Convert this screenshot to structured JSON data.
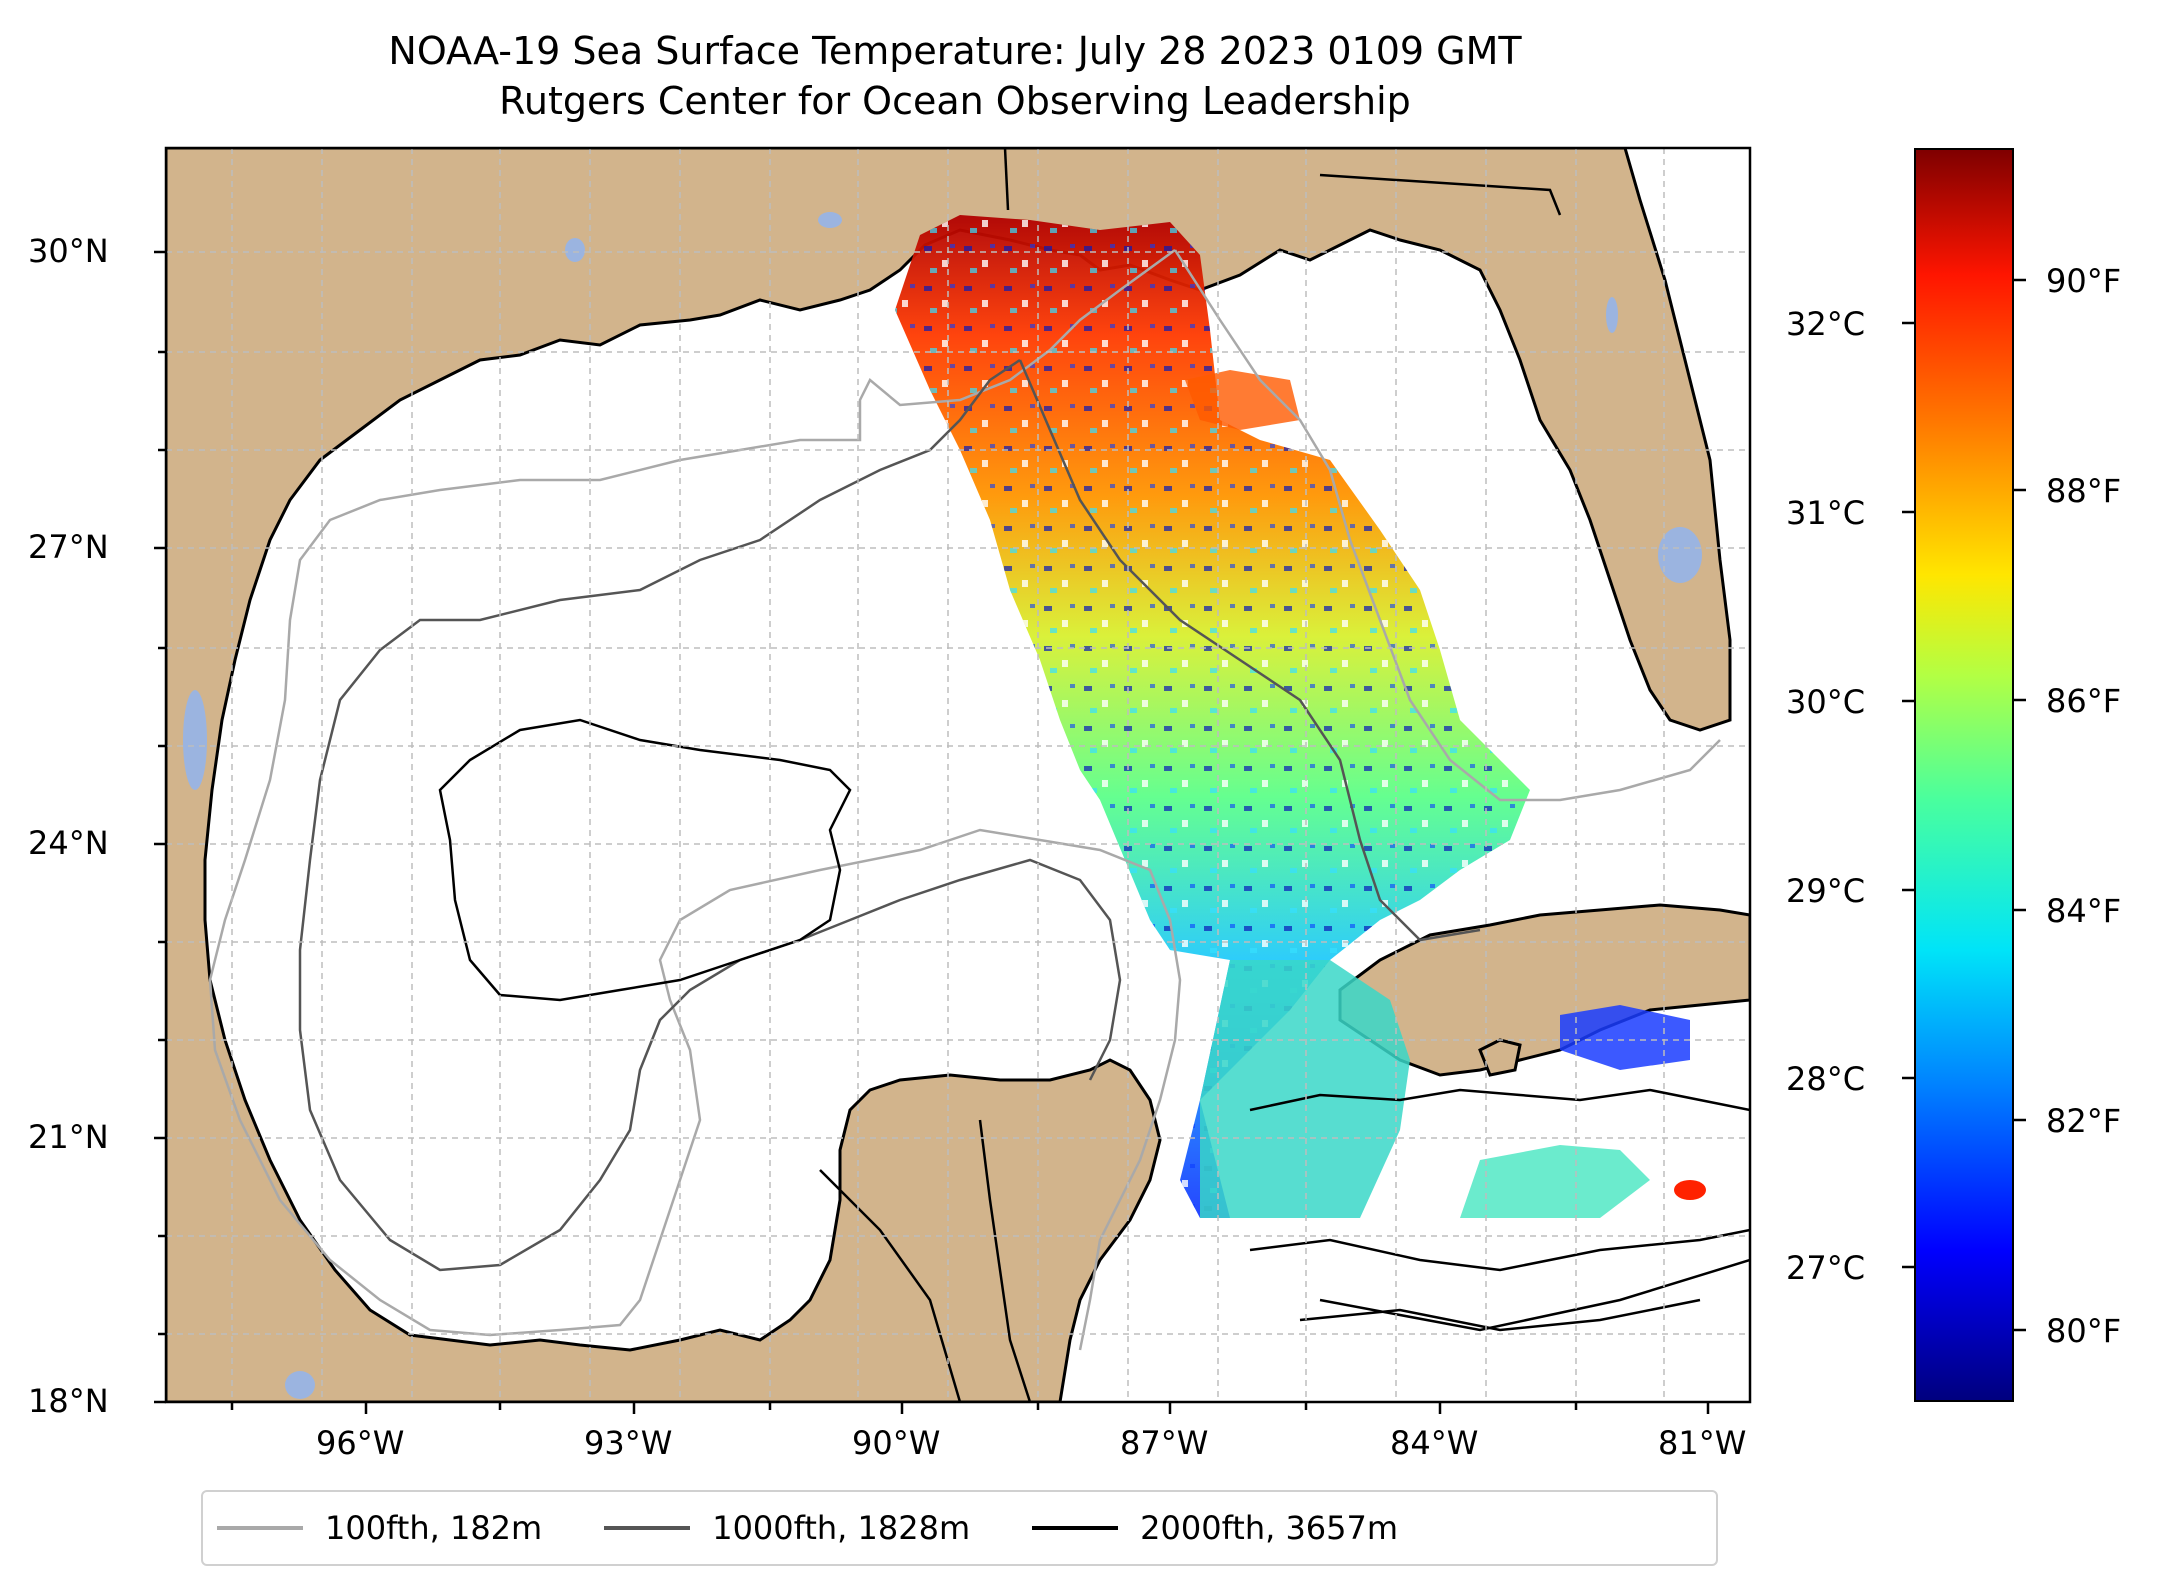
{
  "title": {
    "line1": "NOAA-19 Sea Surface Temperature: July 28 2023 0109 GMT",
    "line2": "Rutgers Center for Ocean Observing Leadership"
  },
  "map": {
    "lat_ticks": [
      "30°N",
      "27°N",
      "24°N",
      "21°N",
      "18°N"
    ],
    "lon_ticks": [
      "96°W",
      "93°W",
      "90°W",
      "87°W",
      "84°W",
      "81°W"
    ],
    "land_color": "#d2b48c",
    "water_color": "#ffffff",
    "lake_color": "#9bb4e0"
  },
  "colorbar": {
    "celsius_ticks": [
      "32°C",
      "31°C",
      "30°C",
      "29°C",
      "28°C",
      "27°C"
    ],
    "fahrenheit_ticks": [
      "90°F",
      "88°F",
      "86°F",
      "84°F",
      "82°F",
      "80°F"
    ],
    "colormap": "jet"
  },
  "legend": [
    {
      "label": "100fth, 182m",
      "color": "#a9a9a9"
    },
    {
      "label": "1000fth, 1828m",
      "color": "#555555"
    },
    {
      "label": "2000fth, 3657m",
      "color": "#000000"
    }
  ]
}
